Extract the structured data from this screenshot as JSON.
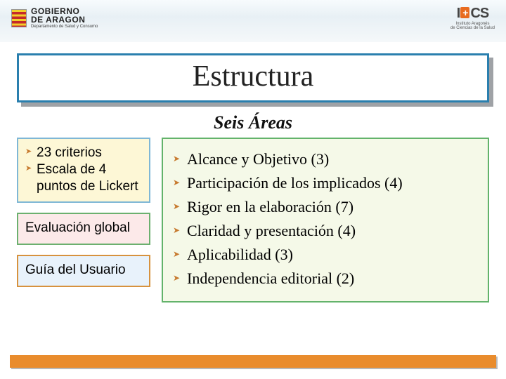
{
  "header": {
    "left_logo": {
      "line1": "GOBIERNO",
      "line2": "DE ARAGON",
      "line3": "Departamento de Salud y Consumo",
      "flag_colors": [
        "#f3cf2a",
        "#c4292b"
      ]
    },
    "right_logo": {
      "mark_left": "I",
      "mark_plus": "+",
      "mark_right": "CS",
      "sub1": "Instituto Aragonés",
      "sub2": "de Ciencias de la Salud"
    },
    "band_bg": "#eef4f8"
  },
  "title": {
    "text": "Estructura",
    "border_color": "#2a7fae",
    "shadow_color": "#9fa2a6",
    "font_size": 42
  },
  "subtitle": {
    "text": "Seis Áreas",
    "font_size": 26,
    "italic": true
  },
  "left_boxes": [
    {
      "bg": "#fdf7d6",
      "border": "#7fb7d6",
      "items": [
        "23 criterios",
        "Escala de 4 puntos de Lickert"
      ]
    },
    {
      "bg": "#fce9e9",
      "border": "#6cb06f",
      "text": "Evaluación global"
    },
    {
      "bg": "#e8f2fb",
      "border": "#d7923e",
      "text": "Guía del Usuario"
    }
  ],
  "areas_box": {
    "bg": "#f5f9e8",
    "border": "#63b36b",
    "bullet_color": "#c77a2f",
    "font_size": 22,
    "items": [
      "Alcance y Objetivo (3)",
      "Participación de los implicados (4)",
      "Rigor en la elaboración (7)",
      "Claridad y presentación (4)",
      "Aplicabilidad (3)",
      "Independencia editorial (2)"
    ]
  },
  "footer_bar_color": "#e98c2d"
}
